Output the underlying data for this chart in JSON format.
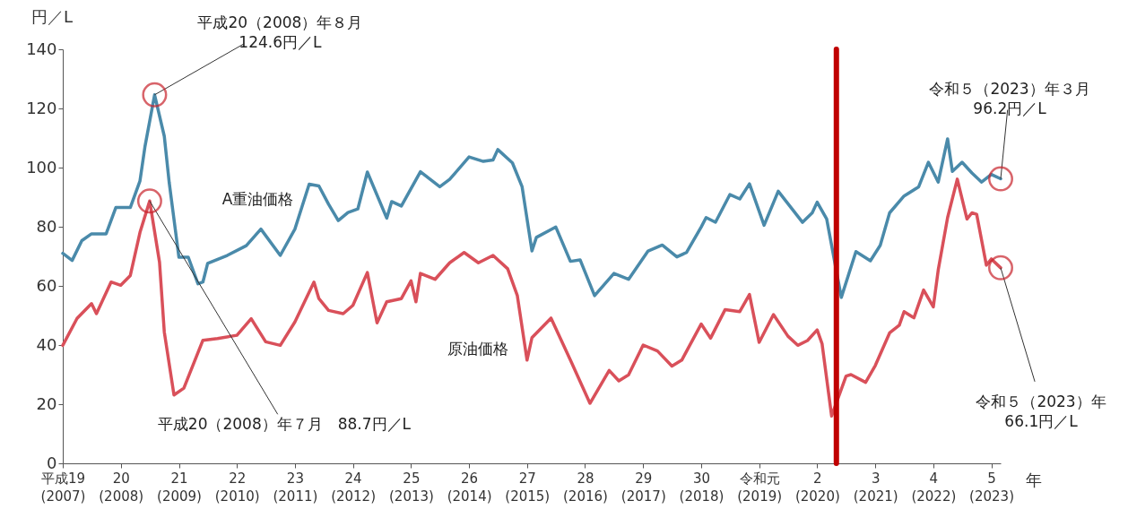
{
  "chart_data": {
    "type": "line",
    "ylabel": "円／L",
    "xlabel": "年",
    "xlim": [
      "2007-01-01",
      "2023-03-01"
    ],
    "ylim": [
      0,
      140
    ],
    "xticks": [
      {
        "value": "2007",
        "label": "平成19\n(2007)"
      },
      {
        "value": "2008",
        "label": "20\n(2008)"
      },
      {
        "value": "2009",
        "label": "21\n(2009)"
      },
      {
        "value": "2010",
        "label": "22\n(2010)"
      },
      {
        "value": "2011",
        "label": "23\n(2011)"
      },
      {
        "value": "2012",
        "label": "24\n(2012)"
      },
      {
        "value": "2013",
        "label": "25\n(2013)"
      },
      {
        "value": "2014",
        "label": "26\n(2014)"
      },
      {
        "value": "2015",
        "label": "27\n(2015)"
      },
      {
        "value": "2016",
        "label": "28\n(2016)"
      },
      {
        "value": "2017",
        "label": "29\n(2017)"
      },
      {
        "value": "2018",
        "label": "30\n(2018)"
      },
      {
        "value": "2019",
        "label": "令和元\n(2019)"
      },
      {
        "value": "2020",
        "label": "2\n(2020)"
      },
      {
        "value": "2021",
        "label": "3\n(2021)"
      },
      {
        "value": "2022",
        "label": "4\n(2022)"
      },
      {
        "value": "2023",
        "label": "5\n(2023)"
      }
    ],
    "yticks": [
      0,
      20,
      40,
      60,
      80,
      100,
      120,
      140
    ],
    "grid": false,
    "legend": false,
    "marker": "none",
    "line_style": "solid",
    "series": [
      {
        "name": "A重油価格",
        "color": "#4a8aaa",
        "x": [
          "2007-01",
          "2007-03",
          "2007-05",
          "2007-07",
          "2007-10",
          "2007-12",
          "2008-03",
          "2008-05",
          "2008-06",
          "2008-08",
          "2008-10",
          "2008-11",
          "2009-01",
          "2009-03",
          "2009-05",
          "2009-06",
          "2009-07",
          "2009-11",
          "2010-03",
          "2010-06",
          "2010-10",
          "2011-01",
          "2011-04",
          "2011-06",
          "2011-08",
          "2011-10",
          "2011-12",
          "2012-02",
          "2012-04",
          "2012-08",
          "2012-09",
          "2012-11",
          "2013-03",
          "2013-07",
          "2013-09",
          "2014-01",
          "2014-04",
          "2014-06",
          "2014-07",
          "2014-10",
          "2014-12",
          "2015-02",
          "2015-03",
          "2015-07",
          "2015-10",
          "2015-12",
          "2016-03",
          "2016-07",
          "2016-10",
          "2017-02",
          "2017-05",
          "2017-08",
          "2017-10",
          "2018-01",
          "2018-02",
          "2018-04",
          "2018-07",
          "2018-09",
          "2018-11",
          "2019-02",
          "2019-05",
          "2019-10",
          "2019-12",
          "2020-01",
          "2020-03",
          "2020-06",
          "2020-09",
          "2020-12",
          "2021-02",
          "2021-04",
          "2021-07",
          "2021-10",
          "2021-12",
          "2022-02",
          "2022-04",
          "2022-05",
          "2022-07",
          "2022-09",
          "2022-11",
          "2023-01",
          "2023-03"
        ],
        "values": [
          71,
          68.6,
          75.3,
          77.6,
          77.6,
          86.5,
          86.5,
          95.5,
          107,
          124.6,
          110.6,
          94.9,
          69.7,
          69.7,
          60.7,
          61.3,
          67.6,
          70.3,
          73.6,
          79.2,
          70.3,
          79.2,
          94.4,
          93.8,
          87.6,
          82.1,
          84.8,
          86,
          98.5,
          82.9,
          88.5,
          87,
          98.6,
          93.5,
          96,
          103.6,
          102.1,
          102.6,
          106.1,
          101.6,
          93.5,
          71.8,
          76.4,
          79.9,
          68.3,
          68.8,
          56.7,
          64.2,
          62.2,
          71.8,
          73.8,
          69.8,
          71.3,
          79.9,
          83.1,
          81.5,
          90.9,
          89.4,
          94.5,
          80.5,
          92,
          81.5,
          84.7,
          88.3,
          82.6,
          56.1,
          71.6,
          68.5,
          73.7,
          84.7,
          90.4,
          93.5,
          101.8,
          95.1,
          109.7,
          98.7,
          101.8,
          98.2,
          95.1,
          97.7,
          96.2
        ]
      },
      {
        "name": "原油価格",
        "color": "#d9505a",
        "x": [
          "2007-01",
          "2007-04",
          "2007-07",
          "2007-08",
          "2007-11",
          "2008-01",
          "2008-03",
          "2008-05",
          "2008-07",
          "2008-09",
          "2008-10",
          "2008-12",
          "2009-02",
          "2009-06",
          "2009-09",
          "2010-01",
          "2010-04",
          "2010-07",
          "2010-10",
          "2011-01",
          "2011-05",
          "2011-06",
          "2011-08",
          "2011-11",
          "2012-01",
          "2012-04",
          "2012-06",
          "2012-08",
          "2012-11",
          "2013-01",
          "2013-02",
          "2013-03",
          "2013-06",
          "2013-09",
          "2013-12",
          "2014-03",
          "2014-06",
          "2014-09",
          "2014-11",
          "2015-01",
          "2015-02",
          "2015-06",
          "2015-10",
          "2016-02",
          "2016-06",
          "2016-08",
          "2016-10",
          "2017-01",
          "2017-04",
          "2017-07",
          "2017-09",
          "2018-01",
          "2018-03",
          "2018-06",
          "2018-09",
          "2018-11",
          "2019-01",
          "2019-04",
          "2019-07",
          "2019-09",
          "2019-11",
          "2020-01",
          "2020-02",
          "2020-04",
          "2020-07",
          "2020-08",
          "2020-11",
          "2021-01",
          "2021-04",
          "2021-06",
          "2021-07",
          "2021-09",
          "2021-11",
          "2022-01",
          "2022-02",
          "2022-04",
          "2022-06",
          "2022-08",
          "2022-09",
          "2022-10",
          "2022-12",
          "2023-01",
          "2023-03"
        ],
        "values": [
          39.9,
          49,
          54,
          50.6,
          61.3,
          60.2,
          63.5,
          78.1,
          88.7,
          68,
          44.4,
          23.1,
          25.4,
          41.6,
          42.2,
          43.3,
          48.9,
          41.1,
          39.9,
          47.8,
          61.3,
          55.7,
          51.7,
          50.6,
          53.4,
          64.5,
          47.5,
          54.6,
          55.7,
          61.7,
          54.6,
          64.2,
          62.2,
          67.8,
          71.3,
          67.8,
          70.3,
          65.8,
          56.7,
          34.9,
          42.5,
          49.1,
          34.9,
          20.3,
          31.4,
          27.9,
          29.9,
          40,
          38,
          32.9,
          34.9,
          47.1,
          42.3,
          52,
          51.3,
          57.1,
          40.9,
          50.3,
          43,
          39.9,
          41.5,
          45.1,
          40.4,
          16,
          29.5,
          30,
          27.4,
          33.1,
          44.1,
          46.7,
          51.3,
          49.2,
          58.6,
          52.9,
          65.4,
          83.1,
          96.1,
          82.6,
          84.7,
          84.2,
          67,
          69.1,
          66.1
        ]
      }
    ],
    "ref_lines": [
      {
        "axis": "x",
        "value": "2020-05",
        "color": "#c00000"
      }
    ],
    "annotations": [
      {
        "text": "平成20（2008）年８月\n124.6円／L",
        "x": "2008-08",
        "y": 124.6
      },
      {
        "text": "平成20（2008）年７月　88.7円／L",
        "x": "2008-07",
        "y": 88.7
      },
      {
        "text": "令和５（2023）年３月\n96.2円／L",
        "x": "2023-03",
        "y": 96.2
      },
      {
        "text": "令和５（2023）年\n66.1円／L",
        "x": "2023-03",
        "y": 66.1
      }
    ]
  }
}
